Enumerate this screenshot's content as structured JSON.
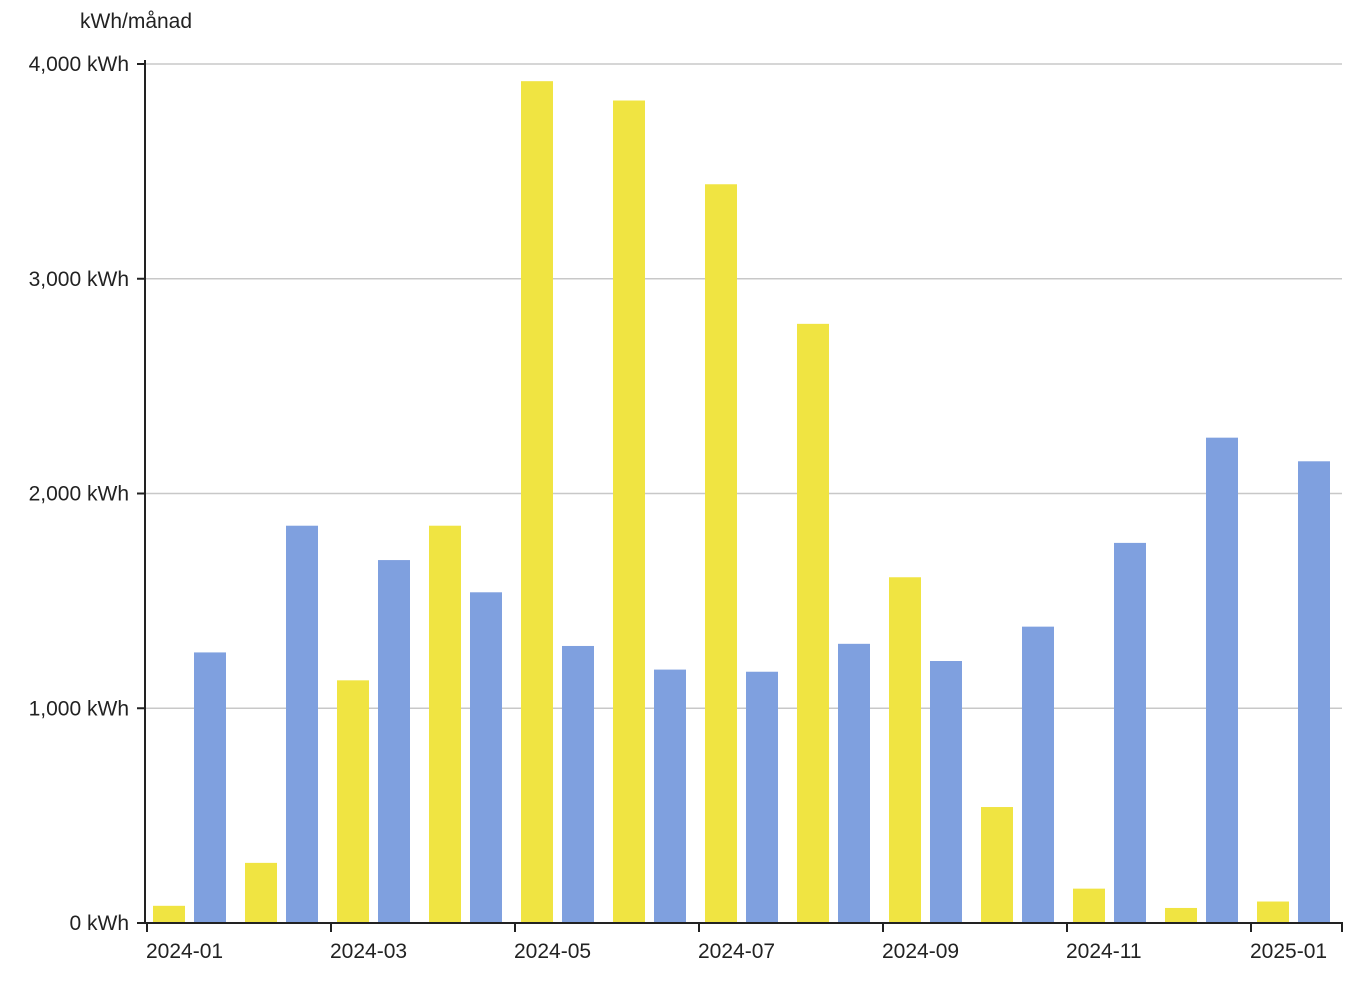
{
  "chart_data": {
    "type": "bar",
    "ylabel": "kWh/månad",
    "ylim": [
      0,
      4000
    ],
    "y_ticks": [
      {
        "value": 0,
        "label": "0 kWh"
      },
      {
        "value": 1000,
        "label": "1,000 kWh"
      },
      {
        "value": 2000,
        "label": "2,000 kWh"
      },
      {
        "value": 3000,
        "label": "3,000 kWh"
      },
      {
        "value": 4000,
        "label": "4,000 kWh"
      }
    ],
    "x_tick_labels": [
      "2024-01",
      "2024-03",
      "2024-05",
      "2024-07",
      "2024-09",
      "2024-11",
      "2025-01"
    ],
    "categories": [
      "2024-01",
      "2024-02",
      "2024-03",
      "2024-04",
      "2024-05",
      "2024-06",
      "2024-07",
      "2024-08",
      "2024-09",
      "2024-10",
      "2024-11",
      "2024-12",
      "2025-01"
    ],
    "grid": true,
    "legend": "none",
    "series": [
      {
        "color": "#f0e442",
        "values": [
          80,
          280,
          1130,
          1850,
          3920,
          3830,
          3440,
          2790,
          1610,
          540,
          160,
          70,
          100
        ]
      },
      {
        "color": "#7fa0df",
        "values": [
          1260,
          1850,
          1690,
          1540,
          1290,
          1180,
          1170,
          1300,
          1220,
          1380,
          1770,
          2260,
          2150
        ]
      }
    ]
  }
}
